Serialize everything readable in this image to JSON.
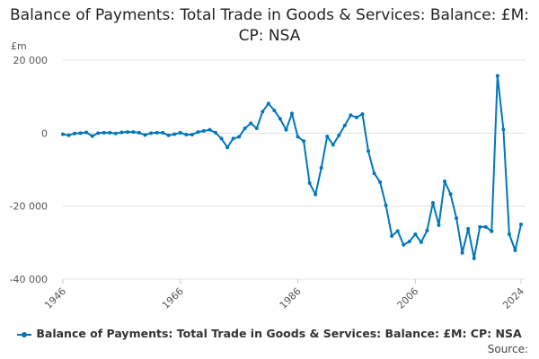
{
  "chart_data": {
    "type": "line",
    "title": "Balance of Payments: Total Trade in Goods & Services: Balance: £M: CP: NSA",
    "ylabel": "£m",
    "xlabel": "",
    "ylim": [
      -40000,
      20000
    ],
    "yticks": [
      20000,
      0,
      -20000,
      -40000
    ],
    "ytick_labels": [
      "20 000",
      "0",
      "-20 000",
      "-40 000"
    ],
    "xlim": [
      1946,
      2024
    ],
    "xticks": [
      1946,
      1966,
      1986,
      2006,
      2024
    ],
    "xtick_labels": [
      "1946",
      "1966",
      "1986",
      "2006",
      "2024"
    ],
    "grid": true,
    "legend_position": "bottom",
    "color": "#0077bb",
    "series": [
      {
        "name": "Balance of Payments: Total Trade in Goods & Services: Balance: £M: CP: NSA",
        "x": [
          1946,
          1947,
          1948,
          1949,
          1950,
          1951,
          1952,
          1953,
          1954,
          1955,
          1956,
          1957,
          1958,
          1959,
          1960,
          1961,
          1962,
          1963,
          1964,
          1965,
          1966,
          1967,
          1968,
          1969,
          1970,
          1971,
          1972,
          1973,
          1974,
          1975,
          1976,
          1977,
          1978,
          1979,
          1980,
          1981,
          1982,
          1983,
          1984,
          1985,
          1986,
          1987,
          1988,
          1989,
          1990,
          1991,
          1992,
          1993,
          1994,
          1995,
          1996,
          1997,
          1998,
          1999,
          2000,
          2001,
          2002,
          2003,
          2004,
          2005,
          2006,
          2007,
          2008,
          2009,
          2010,
          2011,
          2012,
          2013,
          2014,
          2015,
          2016,
          2017,
          2018,
          2019,
          2020,
          2021,
          2022,
          2023,
          2024
        ],
        "values": [
          -300,
          -600,
          -100,
          0,
          200,
          -800,
          0,
          100,
          100,
          -100,
          200,
          300,
          300,
          100,
          -500,
          0,
          100,
          100,
          -600,
          -300,
          100,
          -400,
          -400,
          300,
          600,
          900,
          100,
          -1500,
          -3900,
          -1500,
          -1000,
          1300,
          2700,
          1300,
          5900,
          8100,
          6200,
          3900,
          900,
          5400,
          -1000,
          -2200,
          -13700,
          -16800,
          -9500,
          -900,
          -3200,
          -600,
          2100,
          4900,
          4300,
          5200,
          -4900,
          -11000,
          -13400,
          -19800,
          -28200,
          -26800,
          -30600,
          -29700,
          -27700,
          -29900,
          -26700,
          -19100,
          -25200,
          -13200,
          -16700,
          -23300,
          -32800,
          -26200,
          -34300,
          -25700,
          -25700,
          -26900,
          15700,
          1000,
          -27700,
          -32100,
          -25000
        ]
      }
    ]
  },
  "source_label": "Source:"
}
